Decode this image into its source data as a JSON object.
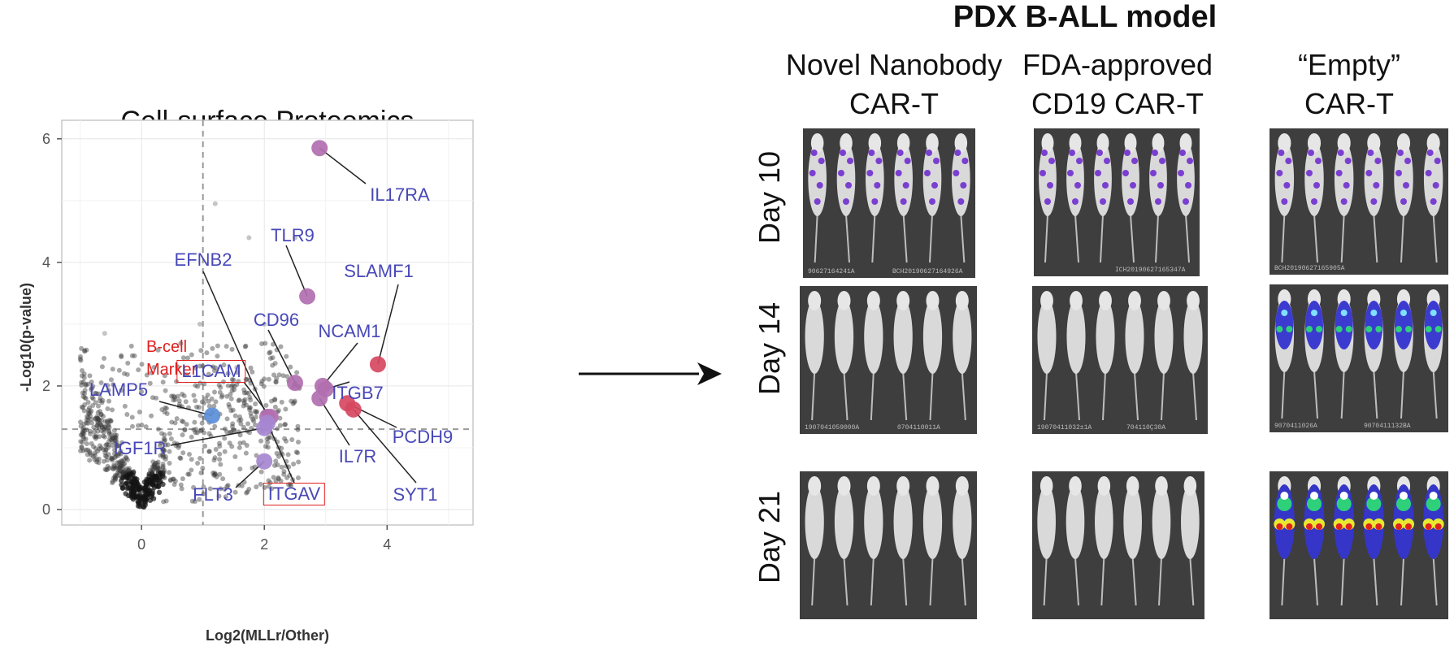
{
  "volcano": {
    "title": "Cell-surface Proteomics",
    "xlabel": "Log2(MLLr/Other)",
    "ylabel": "-Log10(p-value)",
    "annotation": "B-cell\nMarker",
    "colors": {
      "purple": "#b16fb0",
      "red": "#d64860",
      "blue": "#5b8ed8",
      "violet": "#a687d0",
      "gene_text": "#4848b8",
      "box": "#e02020"
    },
    "chart_data": {
      "type": "scatter",
      "title": "Cell-surface Proteomics",
      "xlabel": "Log2(MLLr/Other)",
      "ylabel": "-Log10(p-value)",
      "xlim": [
        -1.3,
        5.4
      ],
      "ylim": [
        -0.25,
        6.3
      ],
      "xticks": [
        0,
        2,
        4
      ],
      "yticks": [
        0,
        2,
        4,
        6
      ],
      "threshold_lines": {
        "x": 1,
        "y": 1.3
      },
      "grid": true,
      "highlighted": [
        {
          "label": "IL17RA",
          "x": 2.9,
          "y": 5.85,
          "color": "purple"
        },
        {
          "label": "TLR9",
          "x": 2.7,
          "y": 3.45,
          "color": "purple"
        },
        {
          "label": "SLAMF1",
          "x": 3.85,
          "y": 2.35,
          "color": "red"
        },
        {
          "label": "NCAM1",
          "x": 2.95,
          "y": 2.0,
          "color": "purple"
        },
        {
          "label": "CD96",
          "x": 2.5,
          "y": 2.05,
          "color": "purple"
        },
        {
          "label": "ITGB7",
          "x": 3.0,
          "y": 1.95,
          "color": "purple"
        },
        {
          "label": "IL7R",
          "x": 2.9,
          "y": 1.8,
          "color": "purple"
        },
        {
          "label": "PCDH9",
          "x": 3.35,
          "y": 1.72,
          "color": "red"
        },
        {
          "label": "SYT1",
          "x": 3.45,
          "y": 1.62,
          "color": "red"
        },
        {
          "label": "EFNB2",
          "x": 2.05,
          "y": 1.5,
          "color": "purple"
        },
        {
          "label": "L1CAM",
          "x": 2.1,
          "y": 1.5,
          "color": "purple",
          "boxed": true
        },
        {
          "label": "LAMP5",
          "x": 1.15,
          "y": 1.52,
          "color": "blue"
        },
        {
          "label": "IGF1R",
          "x": 2.0,
          "y": 1.32,
          "color": "violet"
        },
        {
          "label": "ITGAV",
          "x": 2.05,
          "y": 1.4,
          "color": "violet",
          "boxed": true
        },
        {
          "label": "FLT3",
          "x": 2.0,
          "y": 0.78,
          "color": "violet"
        }
      ]
    }
  },
  "pdx": {
    "title": "PDX B-ALL model",
    "columns": [
      {
        "line1": "Novel Nanobody",
        "line2": "CAR-T"
      },
      {
        "line1": "FDA-approved",
        "line2": "CD19 CAR-T"
      },
      {
        "line1": "“Empty”",
        "line2": "CAR-T"
      }
    ],
    "days": [
      "Day 10",
      "Day 14",
      "Day 21"
    ],
    "captions": {
      "d10_nano_a": "90627164241A",
      "d10_nano_b": "BCH20190627164926A",
      "d10_fda": "ICH20190627165347A",
      "d10_empty": "BCH20190627165905A",
      "d14_nano_a": "1907041059000A",
      "d14_nano_b": "0704110011A",
      "d14_fda_a": "19070411032±1A",
      "d14_fda_b": "704110Ç30A",
      "d14_empty_a": "9070411026A",
      "d14_empty_b": "9070411132BA"
    }
  }
}
